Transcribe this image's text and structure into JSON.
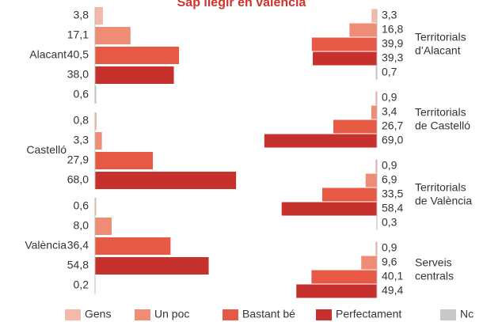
{
  "title": "Sap llegir en valencià",
  "legend": [
    {
      "name": "Gens",
      "color": "#f5b9aa"
    },
    {
      "name": "Un poc",
      "color": "#ef8c76"
    },
    {
      "name": "Bastant bé",
      "color": "#e65a45"
    },
    {
      "name": "Perfectament",
      "color": "#c6312d"
    },
    {
      "name": "Nc",
      "color": "#c8c8c8"
    }
  ],
  "chart_data": [
    {
      "type": "bar",
      "categories": [
        "Alacant",
        "Castelló",
        "València"
      ],
      "series": [
        {
          "values": [
            3.8,
            0.8,
            0.6
          ],
          "value_labels": [
            "3,8",
            "0,8",
            "0,6"
          ]
        },
        {
          "values": [
            17.1,
            3.3,
            8.0
          ],
          "value_labels": [
            "17,1",
            "3,3",
            "8,0"
          ]
        },
        {
          "values": [
            40.5,
            27.9,
            36.4
          ],
          "value_labels": [
            "40,5",
            "27,9",
            "36,4"
          ]
        },
        {
          "values": [
            38.0,
            68.0,
            54.8
          ],
          "value_labels": [
            "38,0",
            "68,0",
            "54,8"
          ]
        },
        {
          "values": [
            0.6,
            null,
            0.2
          ],
          "value_labels": [
            "0,6",
            null,
            "0,2"
          ]
        }
      ]
    },
    {
      "type": "bar",
      "categories": [
        "Territorials\nd’Alacant",
        "Territorials\nde Castelló",
        "Territorials\nde València",
        "Serveis\ncentrals"
      ],
      "series": [
        {
          "values": [
            3.3,
            0.9,
            0.9,
            0.9
          ],
          "value_labels": [
            "3,3",
            "0,9",
            "0,9",
            "0,9"
          ]
        },
        {
          "values": [
            16.8,
            3.4,
            6.9,
            9.6
          ],
          "value_labels": [
            "16,8",
            "3,4",
            "6,9",
            "9,6"
          ]
        },
        {
          "values": [
            39.9,
            26.7,
            33.5,
            40.1
          ],
          "value_labels": [
            "39,9",
            "26,7",
            "33,5",
            "40,1"
          ]
        },
        {
          "values": [
            39.3,
            69.0,
            58.4,
            49.4
          ],
          "value_labels": [
            "39,3",
            "69,0",
            "58,4",
            "49,4"
          ]
        },
        {
          "values": [
            0.7,
            null,
            0.3,
            null
          ],
          "value_labels": [
            "0,7",
            null,
            "0,3",
            null
          ]
        }
      ]
    }
  ]
}
